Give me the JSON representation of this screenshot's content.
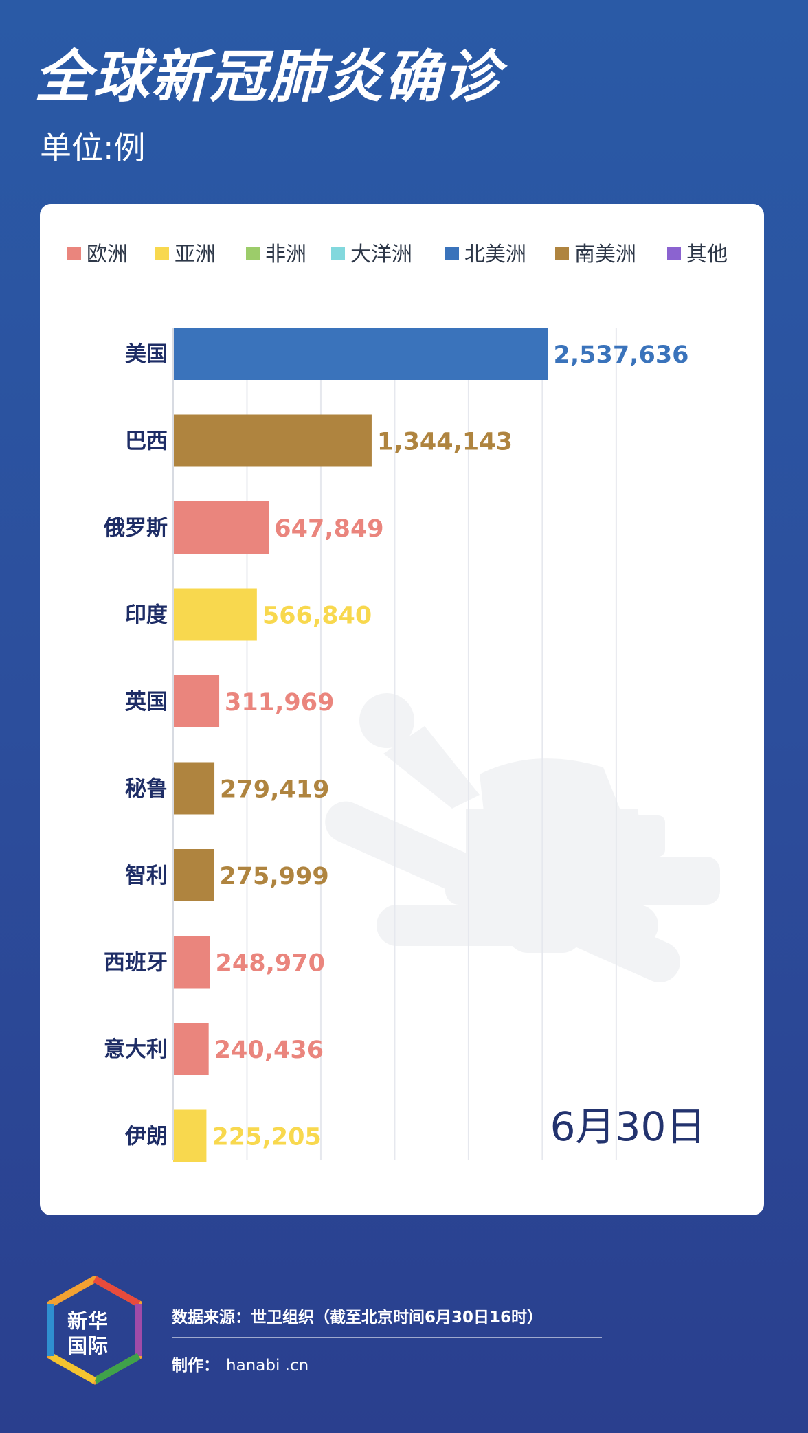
{
  "header": {
    "title": "全球新冠肺炎确诊",
    "unit": "单位:例"
  },
  "chart_data": {
    "type": "bar",
    "orientation": "horizontal",
    "categories": [
      "美国",
      "巴西",
      "俄罗斯",
      "印度",
      "英国",
      "秘鲁",
      "智利",
      "西班牙",
      "意大利",
      "伊朗"
    ],
    "values": [
      2537636,
      1344143,
      647849,
      566840,
      311969,
      279419,
      275999,
      248970,
      240436,
      225205
    ],
    "value_labels": [
      "2,537,636",
      "1,344,143",
      "647,849",
      "566,840",
      "311,969",
      "279,419",
      "275,999",
      "248,970",
      "240,436",
      "225,205"
    ],
    "regions": [
      "北美洲",
      "南美洲",
      "欧洲",
      "亚洲",
      "欧洲",
      "南美洲",
      "南美洲",
      "欧洲",
      "欧洲",
      "亚洲"
    ],
    "legend": [
      {
        "name": "欧洲",
        "color": "#ea857d"
      },
      {
        "name": "亚洲",
        "color": "#f8d84e"
      },
      {
        "name": "非洲",
        "color": "#9ccc6a"
      },
      {
        "name": "大洋洲",
        "color": "#82d8dd"
      },
      {
        "name": "北美洲",
        "color": "#3a73bb"
      },
      {
        "name": "南美洲",
        "color": "#af843f"
      },
      {
        "name": "其他",
        "color": "#8b63d0"
      }
    ],
    "legend_position": "top",
    "xlim": [
      0,
      3000000
    ],
    "grid": true,
    "date_label": "6月30日"
  },
  "footer": {
    "source": "数据来源：世卫组织（截至北京时间6月30日16时）",
    "maker_label": "制作：",
    "maker_value": "hanabi .cn",
    "logo_text": "新华国际"
  }
}
